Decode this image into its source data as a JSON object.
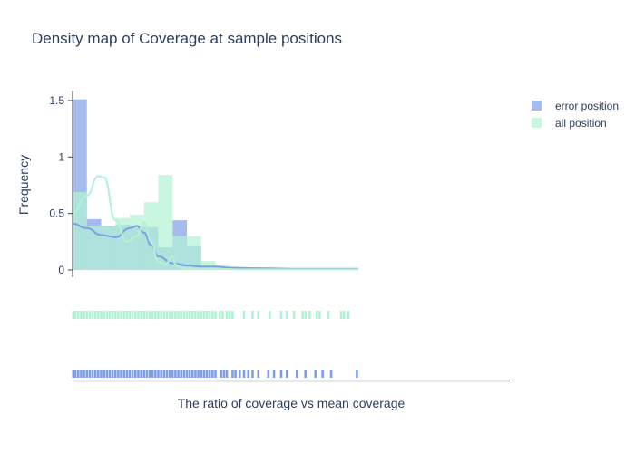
{
  "chart_data": {
    "type": "histogram-density-rug",
    "title": "Density map of Coverage at sample positions",
    "xlabel": "The ratio of coverage vs mean coverage",
    "ylabel": "Frequency",
    "yticks": [
      "0",
      "0.5",
      "1",
      "1.5"
    ],
    "ylim": [
      0,
      1.55
    ],
    "xlim": [
      0,
      2.1
    ],
    "bin_width": 0.1,
    "bin_starts": [
      0,
      0.1,
      0.2,
      0.3,
      0.4,
      0.5,
      0.6,
      0.7,
      0.8,
      0.9,
      1.0,
      1.1,
      1.2,
      1.3,
      1.4,
      1.5,
      1.6,
      1.7,
      1.8,
      1.9
    ],
    "series": [
      {
        "name": "error position",
        "color": "#7f9ee6",
        "histogram": [
          1.51,
          0.45,
          0.39,
          0.4,
          0.39,
          0.38,
          0.2,
          0.44,
          0.21,
          0.02,
          0.02,
          0.01,
          0.01,
          0.01,
          0.01,
          0.005,
          0.005,
          0.005,
          0.005,
          0.005
        ],
        "density": {
          "x": [
            0,
            0.1,
            0.2,
            0.3,
            0.4,
            0.45,
            0.5,
            0.55,
            0.6,
            0.7,
            0.8,
            0.9,
            1.0,
            1.1,
            1.3,
            1.6,
            1.8,
            2.0
          ],
          "y": [
            0.41,
            0.37,
            0.31,
            0.29,
            0.37,
            0.39,
            0.33,
            0.22,
            0.12,
            0.06,
            0.04,
            0.03,
            0.03,
            0.02,
            0.015,
            0.01,
            0.01,
            0.01
          ]
        },
        "rug": [
          0.005,
          0.02,
          0.04,
          0.06,
          0.08,
          0.1,
          0.12,
          0.14,
          0.16,
          0.18,
          0.2,
          0.22,
          0.24,
          0.26,
          0.28,
          0.3,
          0.32,
          0.34,
          0.36,
          0.38,
          0.4,
          0.42,
          0.44,
          0.46,
          0.48,
          0.5,
          0.52,
          0.54,
          0.56,
          0.58,
          0.6,
          0.62,
          0.64,
          0.66,
          0.68,
          0.7,
          0.72,
          0.74,
          0.76,
          0.78,
          0.8,
          0.82,
          0.84,
          0.86,
          0.88,
          0.9,
          0.92,
          0.94,
          0.96,
          0.98,
          1.0,
          1.04,
          1.06,
          1.08,
          1.12,
          1.14,
          1.17,
          1.2,
          1.23,
          1.26,
          1.3,
          1.37,
          1.41,
          1.46,
          1.5,
          1.57,
          1.63,
          1.7,
          1.75,
          1.81,
          1.99
        ]
      },
      {
        "name": "all position",
        "color": "#b2f2d4",
        "histogram": [
          0.69,
          0.39,
          0.39,
          0.46,
          0.49,
          0.6,
          0.84,
          0.3,
          0.3,
          0.08,
          0.04,
          0.02,
          0.015,
          0.01,
          0.01,
          0.01,
          0.01,
          0.01,
          0.01,
          0.005
        ],
        "density": {
          "x": [
            0,
            0.1,
            0.18,
            0.22,
            0.3,
            0.38,
            0.45,
            0.5,
            0.55,
            0.6,
            0.65,
            0.7,
            0.72,
            0.75,
            0.8,
            0.9,
            1.0,
            1.2,
            1.5,
            1.8,
            2.0
          ],
          "y": [
            0.5,
            0.66,
            0.83,
            0.82,
            0.44,
            0.25,
            0.3,
            0.42,
            0.25,
            0.07,
            0.05,
            0.12,
            0.05,
            0.02,
            0.01,
            0.01,
            0.01,
            0.005,
            0.005,
            0.005,
            0.005
          ]
        },
        "rug": [
          0.005,
          0.02,
          0.04,
          0.06,
          0.08,
          0.1,
          0.12,
          0.14,
          0.16,
          0.18,
          0.2,
          0.22,
          0.24,
          0.26,
          0.28,
          0.3,
          0.32,
          0.34,
          0.36,
          0.38,
          0.4,
          0.42,
          0.44,
          0.46,
          0.48,
          0.5,
          0.52,
          0.54,
          0.56,
          0.58,
          0.6,
          0.62,
          0.64,
          0.66,
          0.68,
          0.7,
          0.72,
          0.74,
          0.76,
          0.78,
          0.8,
          0.82,
          0.84,
          0.86,
          0.88,
          0.9,
          0.92,
          0.94,
          0.96,
          0.98,
          1.0,
          1.03,
          1.05,
          1.08,
          1.1,
          1.12,
          1.2,
          1.26,
          1.3,
          1.38,
          1.46,
          1.5,
          1.55,
          1.61,
          1.63,
          1.66,
          1.71,
          1.73,
          1.79,
          1.88,
          1.9,
          1.93
        ]
      }
    ],
    "legend_position": "top-right"
  }
}
